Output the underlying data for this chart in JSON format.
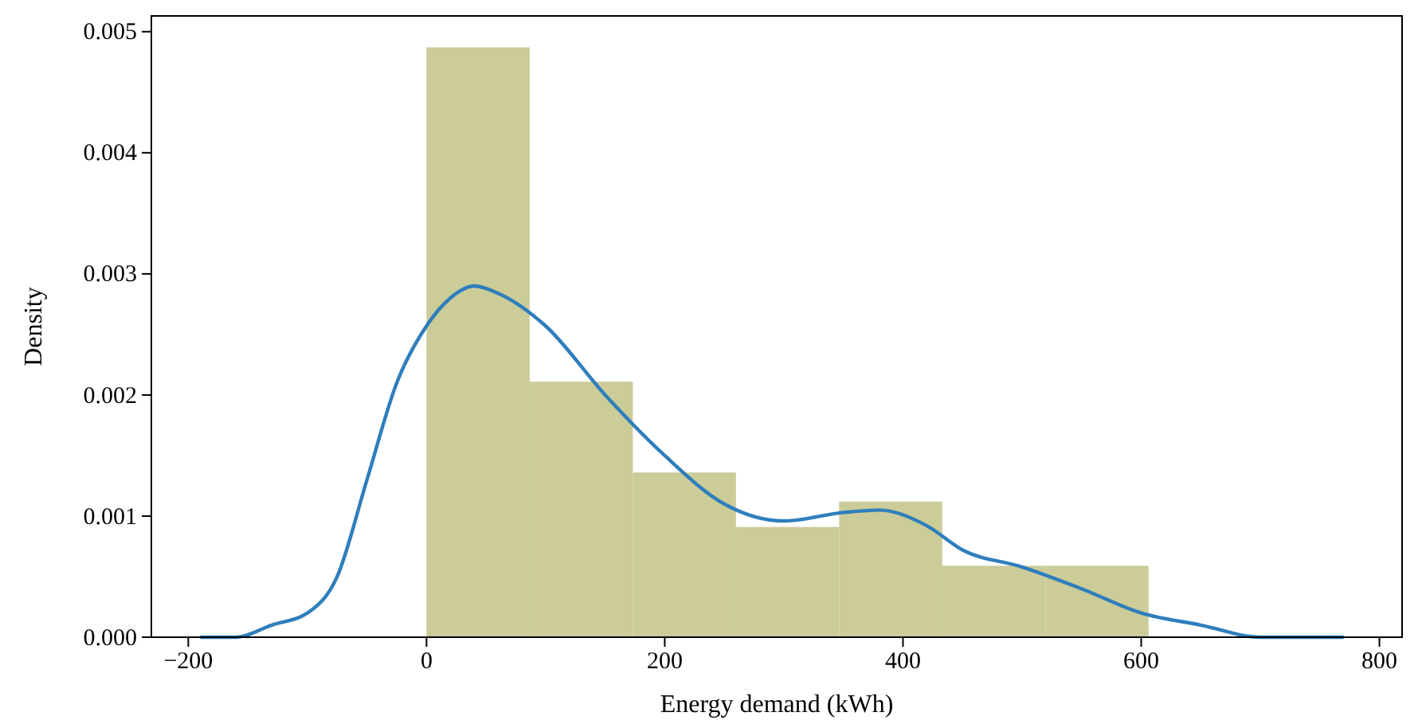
{
  "chart_data": {
    "type": "histogram",
    "xlabel": "Energy demand (kWh)",
    "ylabel": "Density",
    "bins": [
      0,
      86.6,
      173.2,
      259.8,
      346.4,
      433,
      519.6,
      606.2
    ],
    "values": [
      0.00487,
      0.00211,
      0.00136,
      0.00091,
      0.00112,
      0.00059,
      0.00059
    ],
    "color": "#cbcc98",
    "series": [
      {
        "type": "line",
        "color": "#2e7ebc",
        "x": [
          -190,
          -160,
          -130,
          -100,
          -75,
          -50,
          -25,
          0,
          20,
          40,
          60,
          100,
          150,
          200,
          250,
          300,
          350,
          380,
          420,
          450,
          500,
          550,
          600,
          650,
          700,
          770
        ],
        "values": [
          0,
          0,
          0.0001,
          0.0002,
          0.0005,
          0.0013,
          0.0021,
          0.00257,
          0.0028,
          0.0029,
          0.00284,
          0.00257,
          0.002,
          0.0015,
          0.0011,
          0.00096,
          0.00103,
          0.00105,
          0.00092,
          0.00072,
          0.00058,
          0.0004,
          0.0002,
          0.0001,
          0,
          0
        ]
      }
    ],
    "xlim": [
      -231,
      819
    ],
    "xticks": [
      -200,
      0,
      200,
      400,
      600,
      800
    ],
    "ylim": [
      0,
      0.00513
    ],
    "yticks": [
      {
        "value": 0,
        "label": "0.000"
      },
      {
        "value": 0.001,
        "label": "0.001"
      },
      {
        "value": 0.002,
        "label": "0.002"
      },
      {
        "value": 0.003,
        "label": "0.003"
      },
      {
        "value": 0.004,
        "label": "0.004"
      },
      {
        "value": 0.005,
        "label": "0.005"
      }
    ],
    "grid": false
  }
}
